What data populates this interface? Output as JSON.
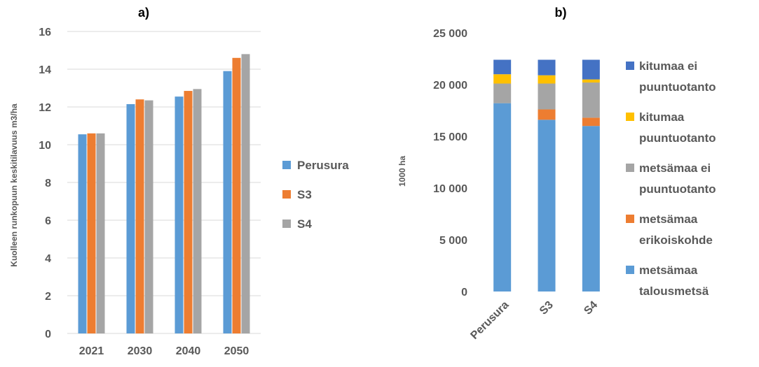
{
  "chart_data": [
    {
      "type": "bar",
      "title": "a)",
      "ylabel": "Kuolleen runkopuun keskitilavuus m3/ha",
      "xlabel": "",
      "categories": [
        "2021",
        "2030",
        "2040",
        "2050"
      ],
      "ylim": [
        0,
        16
      ],
      "yticks": [
        "0",
        "2",
        "4",
        "6",
        "8",
        "10",
        "12",
        "14",
        "16"
      ],
      "grid": true,
      "legend": "right",
      "series": [
        {
          "name": "Perusura",
          "color": "#5b9bd5",
          "values": [
            10.55,
            12.15,
            12.55,
            13.9
          ]
        },
        {
          "name": "S3",
          "color": "#ed7d31",
          "values": [
            10.6,
            12.4,
            12.85,
            14.6
          ]
        },
        {
          "name": "S4",
          "color": "#a5a5a5",
          "values": [
            10.6,
            12.35,
            12.95,
            14.8
          ]
        }
      ]
    },
    {
      "type": "bar",
      "stacked": true,
      "title": "b)",
      "ylabel": "1000 ha",
      "xlabel": "",
      "categories": [
        "Perusura",
        "S3",
        "S4"
      ],
      "ylim": [
        0,
        25000
      ],
      "yticks": [
        "0",
        "5 000",
        "10 000",
        "15 000",
        "20 000",
        "25 000"
      ],
      "grid": false,
      "legend": "right",
      "series": [
        {
          "name": "metsämaa talousmetsä",
          "color": "#5b9bd5",
          "values": [
            18200,
            16600,
            16000
          ]
        },
        {
          "name": "metsämaa erikoiskohde",
          "color": "#ed7d31",
          "values": [
            0,
            1000,
            800
          ]
        },
        {
          "name": "metsämaa ei puuntuotanto",
          "color": "#a5a5a5",
          "values": [
            1900,
            2500,
            3400
          ]
        },
        {
          "name": "kitumaa puuntuotanto",
          "color": "#ffc000",
          "values": [
            900,
            800,
            300
          ]
        },
        {
          "name": "kitumaa ei puuntuotanto",
          "color": "#4472c4",
          "values": [
            1400,
            1500,
            1900
          ]
        }
      ],
      "legend_lines": [
        [
          "kitumaa ei",
          "puuntuotanto"
        ],
        [
          "kitumaa",
          "puuntuotanto"
        ],
        [
          "metsämaa ei",
          "puuntuotanto"
        ],
        [
          "metsämaa",
          "erikoiskohde"
        ],
        [
          "metsämaa",
          "talousmetsä"
        ]
      ]
    }
  ]
}
